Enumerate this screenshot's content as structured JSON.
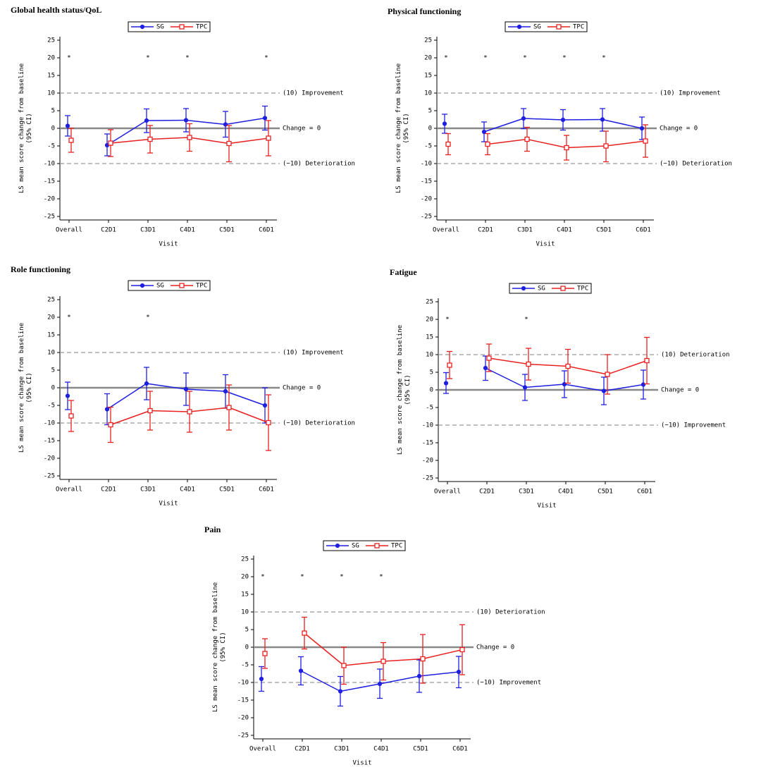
{
  "chart_data": [
    {
      "type": "line",
      "title": "Global health status/QoL",
      "y_label": [
        "LS mean score change from baseline",
        "(95% CI)"
      ],
      "x_label": "Visit",
      "categories": [
        "Overall",
        "C2D1",
        "C3D1",
        "C4D1",
        "C5D1",
        "C6D1"
      ],
      "ylim": [
        -26,
        26
      ],
      "yticks": [
        -25,
        -20,
        -15,
        -10,
        -5,
        0,
        5,
        10,
        15,
        20,
        25
      ],
      "reference_lines": [
        {
          "value": 10,
          "label": "(10) Improvement"
        },
        {
          "value": 0,
          "label": "Change = 0"
        },
        {
          "value": -10,
          "label": "(−10) Deterioration"
        }
      ],
      "annotations": [
        {
          "text": "*",
          "x": "Overall",
          "y": 20
        },
        {
          "text": "*",
          "x": "C3D1",
          "y": 20
        },
        {
          "text": "*",
          "x": "C4D1",
          "y": 20
        },
        {
          "text": "*",
          "x": "C6D1",
          "y": 20
        }
      ],
      "series": [
        {
          "name": "SG",
          "color": "#1f1fe0",
          "marker": "circle",
          "values": [
            0.7,
            -4.8,
            2.2,
            2.3,
            1.1,
            2.9
          ],
          "ci_low": [
            -2.2,
            -7.8,
            -1.2,
            -1,
            -2.5,
            -0.5
          ],
          "ci_high": [
            3.6,
            -1.6,
            5.5,
            5.6,
            4.8,
            6.3
          ]
        },
        {
          "name": "TPC",
          "color": "#e82020",
          "marker": "square",
          "values": [
            -3.4,
            -4.2,
            -3.1,
            -2.6,
            -4.3,
            -2.8
          ],
          "ci_low": [
            -6.8,
            -8,
            -7,
            -6.5,
            -9.5,
            -7.8
          ],
          "ci_high": [
            0,
            -0.4,
            0.8,
            1.3,
            0.8,
            2.2
          ]
        }
      ]
    },
    {
      "type": "line",
      "title": "Physical functioning",
      "y_label": [
        "LS mean score change from baseline",
        "(95% CI)"
      ],
      "x_label": "Visit",
      "categories": [
        "Overall",
        "C2D1",
        "C3D1",
        "C4D1",
        "C5D1",
        "C6D1"
      ],
      "ylim": [
        -26,
        26
      ],
      "yticks": [
        -25,
        -20,
        -15,
        -10,
        -5,
        0,
        5,
        10,
        15,
        20,
        25
      ],
      "reference_lines": [
        {
          "value": 10,
          "label": "(10) Improvement"
        },
        {
          "value": 0,
          "label": "Change = 0"
        },
        {
          "value": -10,
          "label": "(−10) Deterioration"
        }
      ],
      "annotations": [
        {
          "text": "*",
          "x": "Overall",
          "y": 20
        },
        {
          "text": "*",
          "x": "C2D1",
          "y": 20
        },
        {
          "text": "*",
          "x": "C3D1",
          "y": 20
        },
        {
          "text": "*",
          "x": "C4D1",
          "y": 20
        },
        {
          "text": "*",
          "x": "C5D1",
          "y": 20
        }
      ],
      "series": [
        {
          "name": "SG",
          "color": "#1f1fe0",
          "marker": "circle",
          "values": [
            1.3,
            -1,
            2.8,
            2.4,
            2.5,
            0
          ],
          "ci_low": [
            -1.4,
            -3.8,
            -0.1,
            -0.5,
            -0.8,
            -3.2
          ],
          "ci_high": [
            4,
            1.8,
            5.6,
            5.3,
            5.6,
            3.2
          ]
        },
        {
          "name": "TPC",
          "color": "#e82020",
          "marker": "square",
          "values": [
            -4.5,
            -4.5,
            -3.1,
            -5.5,
            -5,
            -3.6
          ],
          "ci_low": [
            -7.5,
            -7.5,
            -6.5,
            -9,
            -9.5,
            -8.2
          ],
          "ci_high": [
            -1.5,
            -1.5,
            0.3,
            -2,
            -0.8,
            1
          ]
        }
      ]
    },
    {
      "type": "line",
      "title": "Role functioning",
      "y_label": [
        "LS mean score change from baseline",
        "(95% CI)"
      ],
      "x_label": "Visit",
      "categories": [
        "Overall",
        "C2D1",
        "C3D1",
        "C4D1",
        "C5D1",
        "C6D1"
      ],
      "ylim": [
        -26,
        26
      ],
      "yticks": [
        -25,
        -20,
        -15,
        -10,
        -5,
        0,
        5,
        10,
        15,
        20,
        25
      ],
      "reference_lines": [
        {
          "value": 10,
          "label": "(10) Improvement"
        },
        {
          "value": 0,
          "label": "Change = 0"
        },
        {
          "value": -10,
          "label": "(−10) Deterioration"
        }
      ],
      "annotations": [
        {
          "text": "*",
          "x": "Overall",
          "y": 20
        },
        {
          "text": "*",
          "x": "C3D1",
          "y": 20
        }
      ],
      "series": [
        {
          "name": "SG",
          "color": "#1f1fe0",
          "marker": "circle",
          "values": [
            -2.3,
            -6.1,
            1.2,
            -0.4,
            -1,
            -5
          ],
          "ci_low": [
            -6.2,
            -10.5,
            -3.4,
            -5,
            -5.8,
            -10
          ],
          "ci_high": [
            1.6,
            -1.7,
            5.8,
            4.2,
            3.7,
            0
          ]
        },
        {
          "name": "TPC",
          "color": "#e82020",
          "marker": "square",
          "values": [
            -8,
            -10.5,
            -6.5,
            -6.8,
            -5.6,
            -9.9
          ],
          "ci_low": [
            -12.4,
            -15.5,
            -12,
            -12.6,
            -12,
            -17.8
          ],
          "ci_high": [
            -3.6,
            -5.5,
            -1,
            -1,
            0.8,
            -2
          ]
        }
      ]
    },
    {
      "type": "line",
      "title": "Fatigue",
      "y_label": [
        "LS mean score change from baseline",
        "(95% CI)"
      ],
      "x_label": "Visit",
      "categories": [
        "Overall",
        "C2D1",
        "C3D1",
        "C4D1",
        "C5D1",
        "C6D1"
      ],
      "ylim": [
        -26,
        26
      ],
      "yticks": [
        -25,
        -20,
        -15,
        -10,
        -5,
        0,
        5,
        10,
        15,
        20,
        25
      ],
      "reference_lines": [
        {
          "value": 10,
          "label": "(10) Deterioration"
        },
        {
          "value": 0,
          "label": "Change = 0"
        },
        {
          "value": -10,
          "label": "(−10) Improvement"
        }
      ],
      "annotations": [
        {
          "text": "*",
          "x": "Overall",
          "y": 20
        },
        {
          "text": "*",
          "x": "C3D1",
          "y": 20
        }
      ],
      "series": [
        {
          "name": "SG",
          "color": "#1f1fe0",
          "marker": "circle",
          "values": [
            1.9,
            6.2,
            0.7,
            1.6,
            -0.3,
            1.5
          ],
          "ci_low": [
            -1,
            2.7,
            -3,
            -2.2,
            -4.2,
            -2.6
          ],
          "ci_high": [
            4.9,
            9.6,
            4.4,
            5.4,
            3.6,
            5.6
          ]
        },
        {
          "name": "TPC",
          "color": "#e82020",
          "marker": "square",
          "values": [
            7,
            9,
            7.3,
            6.7,
            4.4,
            8.3
          ],
          "ci_low": [
            3.2,
            5.2,
            2.8,
            1.9,
            -1.2,
            1.7
          ],
          "ci_high": [
            10.9,
            13,
            11.8,
            11.5,
            10,
            14.9
          ]
        }
      ]
    },
    {
      "type": "line",
      "title": "Pain",
      "y_label": [
        "LS mean score change from baseline",
        "(95% CI)"
      ],
      "x_label": "Visit",
      "categories": [
        "Overall",
        "C2D1",
        "C3D1",
        "C4D1",
        "C5D1",
        "C6D1"
      ],
      "ylim": [
        -26,
        26
      ],
      "yticks": [
        -25,
        -20,
        -15,
        -10,
        -5,
        0,
        5,
        10,
        15,
        20,
        25
      ],
      "reference_lines": [
        {
          "value": 10,
          "label": "(10) Deterioration"
        },
        {
          "value": 0,
          "label": "Change = 0"
        },
        {
          "value": -10,
          "label": "(−10) Improvement"
        }
      ],
      "annotations": [
        {
          "text": "*",
          "x": "Overall",
          "y": 20
        },
        {
          "text": "*",
          "x": "C2D1",
          "y": 20
        },
        {
          "text": "*",
          "x": "C3D1",
          "y": 20
        },
        {
          "text": "*",
          "x": "C4D1",
          "y": 20
        }
      ],
      "series": [
        {
          "name": "SG",
          "color": "#1f1fe0",
          "marker": "circle",
          "values": [
            -9,
            -6.7,
            -12.5,
            -10.4,
            -8.2,
            -7
          ],
          "ci_low": [
            -12.5,
            -10.7,
            -16.7,
            -14.5,
            -12.8,
            -11.5
          ],
          "ci_high": [
            -5.5,
            -2.7,
            -8.3,
            -6.2,
            -3.6,
            -2.6
          ]
        },
        {
          "name": "TPC",
          "color": "#e82020",
          "marker": "square",
          "values": [
            -1.8,
            4,
            -5.2,
            -4,
            -3.3,
            -0.7
          ],
          "ci_low": [
            -6,
            -0.5,
            -10.5,
            -9.3,
            -10.2,
            -7.8
          ],
          "ci_high": [
            2.4,
            8.5,
            0,
            1.3,
            3.6,
            6.4
          ]
        }
      ]
    }
  ]
}
